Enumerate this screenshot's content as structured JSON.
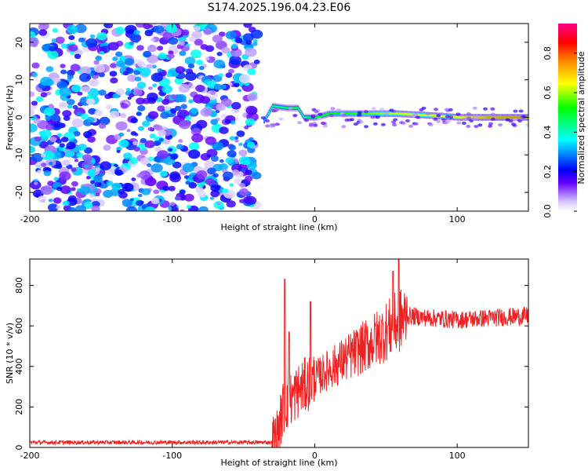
{
  "title": "S174.2025.196.04.23.E06",
  "chart_data": [
    {
      "type": "heatmap",
      "xlabel": "Height of straight line (km)",
      "ylabel": "Frequency (Hz)",
      "xlim": [
        -200,
        150
      ],
      "ylim": [
        -25,
        25
      ],
      "xticks": [
        -200,
        -100,
        0,
        100
      ],
      "yticks": [
        -20,
        -10,
        0,
        10,
        20
      ],
      "grid": false,
      "colorbar": {
        "label": "Normalized spectral amplitude",
        "range": [
          0.0,
          0.95
        ],
        "ticks": [
          0.0,
          0.2,
          0.4,
          0.6,
          0.8
        ],
        "colors": [
          "#d8c8ff",
          "#5500ff",
          "#0000ff",
          "#00ffff",
          "#00ff00",
          "#ffff00",
          "#ff8800",
          "#ff0000",
          "#ff0088"
        ]
      },
      "noise_region_x": [
        -200,
        -40
      ],
      "noise_amplitude": 0.35,
      "ridge": [
        {
          "x": -36,
          "f": -1,
          "amp": 0.3
        },
        {
          "x": -30,
          "f": 3,
          "amp": 0.45
        },
        {
          "x": -20,
          "f": 2.5,
          "amp": 0.5
        },
        {
          "x": -12,
          "f": 2.5,
          "amp": 0.5
        },
        {
          "x": -8,
          "f": 0,
          "amp": 0.4
        },
        {
          "x": 0,
          "f": 0,
          "amp": 0.55
        },
        {
          "x": 10,
          "f": 1,
          "amp": 0.55
        },
        {
          "x": 30,
          "f": 1,
          "amp": 0.6
        },
        {
          "x": 55,
          "f": 1,
          "amp": 0.7
        },
        {
          "x": 80,
          "f": 0.5,
          "amp": 0.7
        },
        {
          "x": 100,
          "f": 0,
          "amp": 0.75
        },
        {
          "x": 120,
          "f": 0,
          "amp": 0.85
        },
        {
          "x": 150,
          "f": 0,
          "amp": 0.9
        }
      ]
    },
    {
      "type": "line",
      "xlabel": "Height of straight line (km)",
      "ylabel": "SNR (10 * v/v)",
      "xlim": [
        -200,
        150
      ],
      "ylim": [
        0,
        930
      ],
      "xticks": [
        -200,
        -100,
        0,
        100
      ],
      "yticks": [
        0,
        200,
        400,
        600,
        800
      ],
      "grid": false,
      "series": [
        {
          "color": "#ee2222",
          "trend": [
            {
              "x": -200,
              "y": 25
            },
            {
              "x": -30,
              "y": 25
            },
            {
              "x": -26,
              "y": 60
            },
            {
              "x": -22,
              "y": 200
            },
            {
              "x": -10,
              "y": 290
            },
            {
              "x": 0,
              "y": 340
            },
            {
              "x": 20,
              "y": 430
            },
            {
              "x": 40,
              "y": 520
            },
            {
              "x": 55,
              "y": 600
            },
            {
              "x": 65,
              "y": 650
            },
            {
              "x": 80,
              "y": 640
            },
            {
              "x": 100,
              "y": 630
            },
            {
              "x": 150,
              "y": 650
            }
          ],
          "spikes": [
            {
              "x": -21,
              "y": 830
            },
            {
              "x": -18,
              "y": 570
            },
            {
              "x": -3,
              "y": 720
            },
            {
              "x": 55,
              "y": 870
            },
            {
              "x": 59,
              "y": 930
            }
          ]
        }
      ]
    }
  ]
}
